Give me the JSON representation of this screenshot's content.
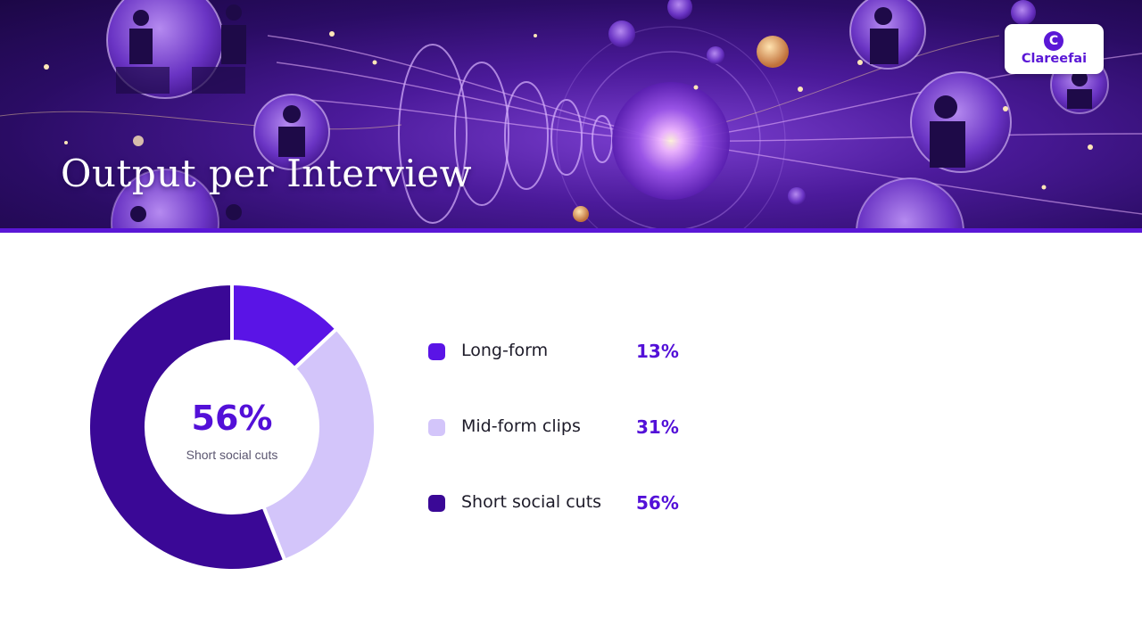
{
  "header": {
    "title": "Output per Interview",
    "logo_text": "Clareefai"
  },
  "chart_data": {
    "type": "pie",
    "style": "donut",
    "categories": [
      "Long-form",
      "Mid-form clips",
      "Short social cuts"
    ],
    "values": [
      13,
      31,
      56
    ],
    "labels": [
      "13%",
      "31%",
      "56%"
    ],
    "colors": [
      "#5a14e6",
      "#d3c5fa",
      "#3a0896"
    ],
    "center": {
      "value": "56%",
      "label": "Short social cuts"
    },
    "legend": "right"
  },
  "colors": {
    "accent": "#5310d8",
    "banner_line": "#5a17d6"
  }
}
